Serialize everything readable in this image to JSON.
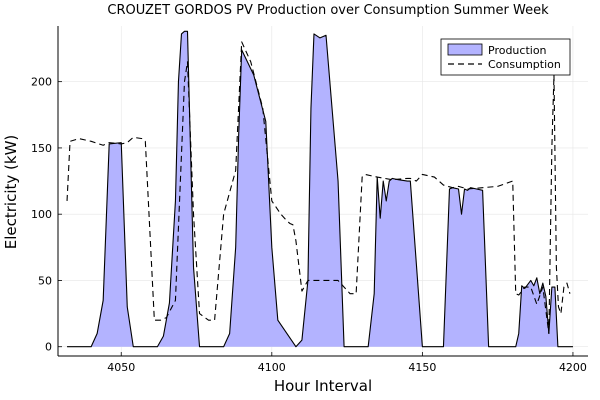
{
  "chart_data": {
    "type": "area",
    "title": "CROUZET GORDOS PV Production over Consumption Summer Week",
    "xlabel": "Hour Interval",
    "ylabel": "Electricity (kW)",
    "xlim": [
      4029,
      4205
    ],
    "ylim": [
      -7,
      242
    ],
    "xticks": [
      4050,
      4100,
      4150,
      4200
    ],
    "yticks": [
      0,
      50,
      100,
      150,
      200
    ],
    "grid": true,
    "legend_position": "top-right",
    "colors": {
      "production_fill": "#b3b3ff",
      "production_line": "#000000",
      "consumption_line": "#000000"
    },
    "series": [
      {
        "name": "Production",
        "style": "filled-area",
        "x": [
          4032,
          4040,
          4042,
          4044,
          4046,
          4050,
          4052,
          4054,
          4062,
          4064,
          4066,
          4068,
          4069,
          4070,
          4071,
          4072,
          4074,
          4076,
          4084,
          4086,
          4088,
          4089,
          4090,
          4094,
          4098,
          4100,
          4102,
          4108,
          4110,
          4112,
          4113,
          4114,
          4116,
          4118,
          4122,
          4124,
          4132,
          4134,
          4135,
          4136,
          4137,
          4138,
          4139,
          4140,
          4142,
          4145,
          4146,
          4150,
          4157,
          4159,
          4160,
          4162,
          4163,
          4164,
          4165,
          4166,
          4168,
          4170,
          4172,
          4181,
          4182,
          4183,
          4184,
          4186,
          4187,
          4188,
          4189,
          4190,
          4191,
          4192,
          4193,
          4194,
          4195,
          4196,
          4200
        ],
        "values": [
          0,
          0,
          10,
          35,
          153,
          154,
          30,
          0,
          0,
          8,
          33,
          110,
          200,
          236,
          238,
          238,
          60,
          0,
          0,
          10,
          75,
          160,
          224,
          205,
          170,
          75,
          20,
          0,
          5,
          50,
          180,
          236,
          233,
          235,
          125,
          0,
          0,
          40,
          128,
          97,
          125,
          110,
          125,
          127,
          126,
          125,
          125,
          0,
          0,
          119,
          120,
          119,
          100,
          119,
          118,
          120,
          119,
          118,
          0,
          0,
          10,
          46,
          44,
          50,
          46,
          52,
          40,
          48,
          38,
          10,
          45,
          45,
          0,
          0,
          0
        ]
      },
      {
        "name": "Consumption",
        "style": "dashed-line",
        "x": [
          4032,
          4033,
          4036,
          4040,
          4044,
          4046,
          4050,
          4052,
          4054,
          4057,
          4058,
          4061,
          4063,
          4065,
          4068,
          4071,
          4072,
          4074,
          4076,
          4079,
          4081,
          4084,
          4088,
          4090,
          4093,
          4097,
          4100,
          4103,
          4105,
          4106,
          4107,
          4108,
          4110,
          4112,
          4122,
          4124,
          4126,
          4128,
          4130,
          4131,
          4135,
          4140,
          4145,
          4146,
          4148,
          4150,
          4152,
          4154,
          4157,
          4160,
          4162,
          4165,
          4170,
          4175,
          4180,
          4181,
          4182,
          4184,
          4186,
          4188,
          4190,
          4192,
          4193,
          4193.7,
          4194.5,
          4195.2,
          4196,
          4197,
          4198,
          4199
        ],
        "values": [
          110,
          155,
          157,
          155,
          152,
          154,
          153,
          154,
          158,
          157,
          155,
          20,
          20,
          22,
          35,
          200,
          215,
          100,
          25,
          20,
          20,
          100,
          133,
          230,
          215,
          180,
          110,
          100,
          95,
          93,
          92,
          80,
          42,
          50,
          50,
          45,
          40,
          40,
          128,
          130,
          128,
          126,
          127,
          127,
          125,
          130,
          129,
          128,
          122,
          120,
          121,
          119,
          120,
          121,
          125,
          40,
          39,
          45,
          45,
          32,
          45,
          10,
          150,
          205,
          60,
          30,
          25,
          45,
          48,
          40
        ]
      }
    ]
  }
}
